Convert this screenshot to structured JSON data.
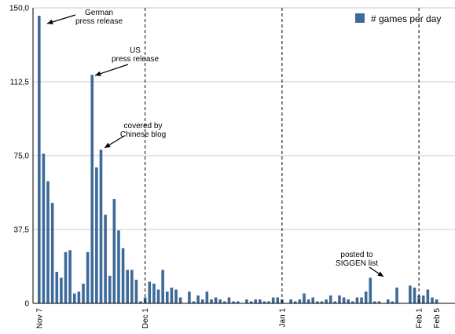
{
  "chart_data": {
    "type": "bar",
    "title": "",
    "xlabel": "",
    "ylabel": "",
    "ylim": [
      0,
      150
    ],
    "grid": "horizontal",
    "legend_placement": "top-right",
    "color": "#3d6a99",
    "y_ticks": [
      "0",
      "37,5",
      "75,0",
      "112,5",
      "150,0"
    ],
    "y_tick_values": [
      0,
      37.5,
      75,
      112.5,
      150
    ],
    "x_tick_labels": [
      {
        "label": "Nov 7",
        "day": 0
      },
      {
        "label": "Dec 1",
        "day": 24
      },
      {
        "label": "Jan 1",
        "day": 55
      },
      {
        "label": "Feb 1",
        "day": 86
      },
      {
        "label": "Feb 5",
        "day": 90
      }
    ],
    "vertical_markers": [
      24,
      55,
      86
    ],
    "series": [
      {
        "name": "# games per day",
        "values": [
          146,
          76,
          62,
          51,
          16,
          13,
          26,
          27,
          5,
          6,
          10,
          26,
          116,
          69,
          78,
          45,
          14,
          53,
          37,
          28,
          17,
          17,
          12,
          1,
          3,
          11,
          10,
          7,
          17,
          6,
          8,
          7,
          3,
          0,
          6,
          1,
          4,
          2,
          6,
          2,
          3,
          2,
          1,
          3,
          1,
          1,
          0,
          2,
          1,
          2,
          2,
          1,
          1,
          3,
          3,
          2,
          0,
          2,
          1,
          2,
          5,
          2,
          3,
          1,
          1,
          2,
          4,
          1,
          4,
          3,
          2,
          1,
          3,
          3,
          6,
          13,
          1,
          1,
          0,
          2,
          1,
          8,
          0,
          0,
          9,
          8,
          4,
          4,
          7,
          3,
          2
        ]
      }
    ],
    "annotations": [
      {
        "lines": [
          "German",
          "press release"
        ],
        "day": 0
      },
      {
        "lines": [
          "US",
          "press release"
        ],
        "day": 12
      },
      {
        "lines": [
          "covered by",
          "Chinese blog"
        ],
        "day": 14
      },
      {
        "lines": [
          "posted to",
          "SIGGEN list"
        ],
        "day": 75
      }
    ]
  }
}
